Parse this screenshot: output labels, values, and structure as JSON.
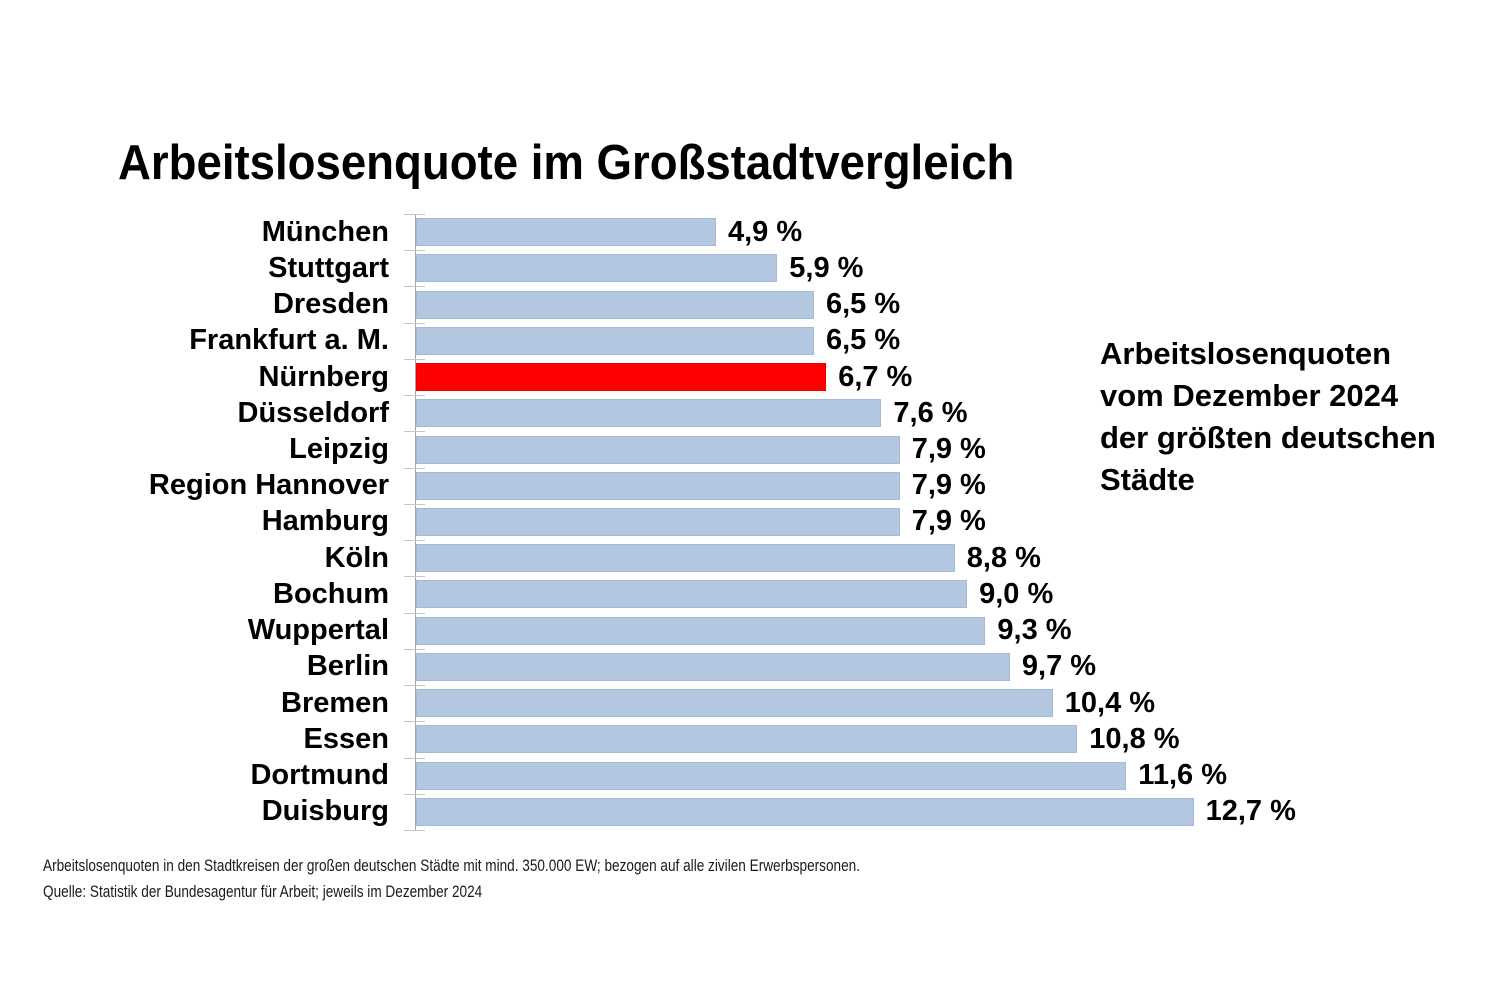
{
  "page": {
    "title": "Arbeitslosenquote im Großstadtvergleich",
    "side_note": "Arbeitslosenquoten\nvom Dezember 2024\nder größten deutschen\nStädte",
    "footnote_line1": "Arbeitslosenquoten in den Stadtkreisen der großen deutschen Städte mit mind. 350.000 EW; bezogen auf alle zivilen Erwerbspersonen.",
    "footnote_line2": "Quelle: Statistik der Bundesagentur für Arbeit; jeweils im Dezember 2024"
  },
  "chart_data": {
    "type": "bar",
    "orientation": "horizontal",
    "title": "Arbeitslosenquote im Großstadtvergleich",
    "unit": "%",
    "categories": [
      "München",
      "Stuttgart",
      "Dresden",
      "Frankfurt a. M.",
      "Nürnberg",
      "Düsseldorf",
      "Leipzig",
      "Region Hannover",
      "Hamburg",
      "Köln",
      "Bochum",
      "Wuppertal",
      "Berlin",
      "Bremen",
      "Essen",
      "Dortmund",
      "Duisburg"
    ],
    "values": [
      4.9,
      5.9,
      6.5,
      6.5,
      6.7,
      7.6,
      7.9,
      7.9,
      7.9,
      8.8,
      9.0,
      9.3,
      9.7,
      10.4,
      10.8,
      11.6,
      12.7
    ],
    "value_labels": [
      "4,9 %",
      "5,9 %",
      "6,5 %",
      "6,5 %",
      "6,7 %",
      "7,6 %",
      "7,9 %",
      "7,9 %",
      "7,9 %",
      "8,8 %",
      "9,0 %",
      "9,3 %",
      "9,7 %",
      "10,4 %",
      "10,8 %",
      "11,6 %",
      "12,7 %"
    ],
    "highlight_category": "Nürnberg",
    "highlight_color": "#ff0000",
    "bar_color": "#b4c7e1",
    "xlim": [
      0,
      13
    ],
    "grid": false,
    "legend": false,
    "value_label_position": "end-of-bar",
    "annotation": "Arbeitslosenquoten vom Dezember 2024 der größten deutschen Städte",
    "footnotes": [
      "Arbeitslosenquoten in den Stadtkreisen der großen deutschen Städte mit mind. 350.000 EW; bezogen auf alle zivilen Erwerbspersonen.",
      "Quelle: Statistik der Bundesagentur für Arbeit; jeweils im Dezember 2024"
    ]
  }
}
